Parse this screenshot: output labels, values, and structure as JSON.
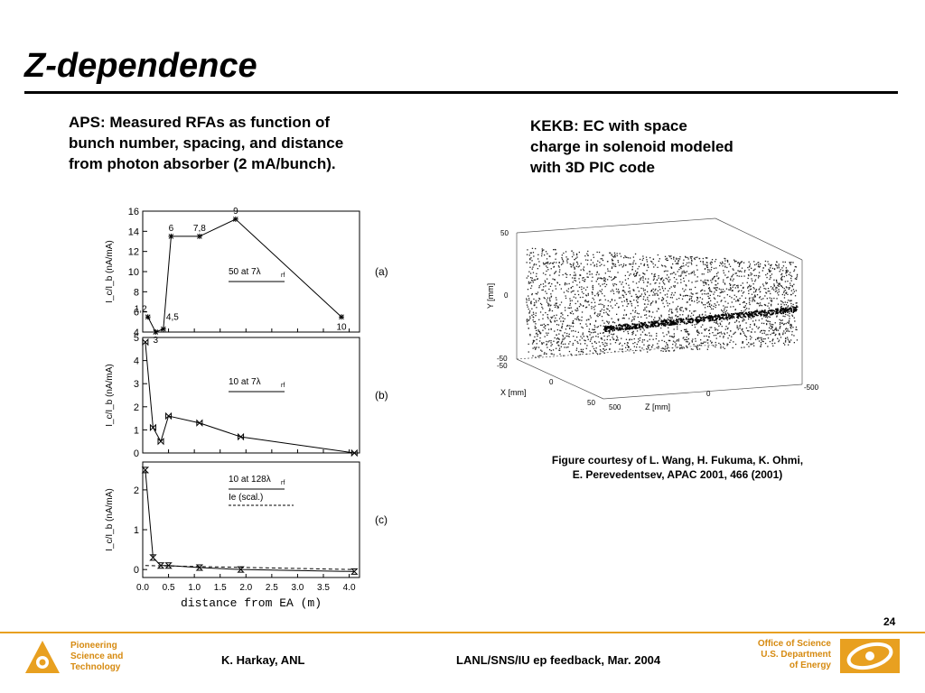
{
  "slide": {
    "title": "Z-dependence",
    "left_text": [
      "APS: Measured RFAs as function of",
      "bunch number, spacing, and distance",
      "from photon absorber (2 mA/bunch)."
    ],
    "right_text": [
      "KEKB: EC with space",
      "charge in solenoid modeled",
      "with 3D PIC code"
    ],
    "caption": [
      "Figure courtesy of L. Wang, H. Fukuma, K. Ohmi,",
      "E. Perevedentsev, APAC 2001, 466 (2001)"
    ],
    "page_number": "24"
  },
  "footer": {
    "left": [
      "Pioneering",
      "Science and",
      "Technology"
    ],
    "author": "K. Harkay, ANL",
    "event": "LANL/SNS/IU ep feedback, Mar. 2004",
    "right": [
      "Office of Science",
      "U.S. Department",
      "of Energy"
    ],
    "colors": {
      "accent": "#e8a020",
      "text_orange": "#d68a10"
    }
  },
  "chart_data": [
    {
      "type": "line",
      "panel": "(a)",
      "ylabel": "I_c/I_b (nA/mA)",
      "ylim": [
        4,
        16
      ],
      "yticks": [
        "4",
        "6",
        "8",
        "10",
        "12",
        "14",
        "16"
      ],
      "xlim": [
        0,
        4.2
      ],
      "x": [
        0.1,
        0.25,
        0.4,
        0.55,
        1.1,
        1.8,
        3.85
      ],
      "y": [
        5.5,
        4.0,
        4.3,
        13.5,
        13.5,
        15.2,
        5.5
      ],
      "point_labels": [
        "1,2",
        "3",
        "4,5",
        "6",
        "7,8",
        "9",
        "10"
      ],
      "legend_text": "50  at  7λ",
      "legend_sub": "rf",
      "marker": "asterisk"
    },
    {
      "type": "line",
      "panel": "(b)",
      "ylabel": "I_c/I_b (nA/mA)",
      "ylim": [
        0,
        5
      ],
      "yticks": [
        "0",
        "1",
        "2",
        "3",
        "4",
        "5"
      ],
      "xlim": [
        0,
        4.2
      ],
      "x": [
        0.05,
        0.2,
        0.35,
        0.5,
        1.1,
        1.9,
        4.1
      ],
      "y": [
        4.8,
        1.1,
        0.5,
        1.6,
        1.3,
        0.7,
        0.0
      ],
      "legend_text": "10  at  7λ",
      "legend_sub": "rf",
      "marker": "bowtie"
    },
    {
      "type": "line",
      "panel": "(c)",
      "ylabel": "I_c/I_b (nA/mA)",
      "ylim": [
        -0.2,
        2.7
      ],
      "yticks": [
        "0",
        "1",
        "2"
      ],
      "xlim": [
        0,
        4.2
      ],
      "xticks": [
        "0.0",
        "0.5",
        "1.0",
        "1.5",
        "2.0",
        "2.5",
        "3.0",
        "3.5",
        "4.0"
      ],
      "xlabel": "distance  from  EA  (m)",
      "x": [
        0.05,
        0.2,
        0.35,
        0.5,
        1.1,
        1.9,
        4.1
      ],
      "y": [
        2.5,
        0.3,
        0.1,
        0.1,
        0.05,
        0.0,
        -0.05
      ],
      "scaled": {
        "x": [
          0.05,
          4.1
        ],
        "y": [
          0.1,
          0.0
        ]
      },
      "legend_text": "10  at  128λ",
      "legend_sub": "rf",
      "legend_text2": "Ie  (scal.)",
      "marker": "hourglass"
    }
  ],
  "figure_right": {
    "y_label": "Y [mm]",
    "x_label": "X [mm]",
    "z_label": "Z [mm]",
    "y_ticks": [
      "50",
      "0",
      "-50"
    ],
    "x_ticks": [
      "-50",
      "0",
      "50"
    ],
    "z_ticks": [
      "500",
      "0",
      "-500"
    ]
  }
}
